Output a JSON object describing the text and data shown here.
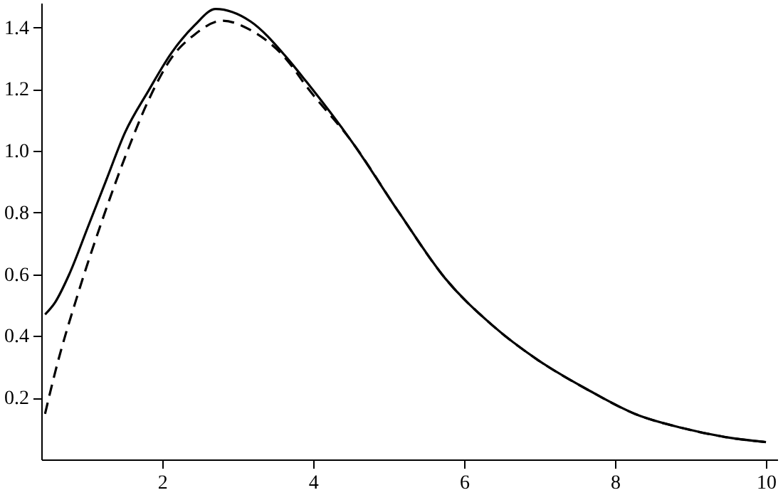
{
  "chart_data": {
    "type": "line",
    "xlim": [
      0.4,
      10.15
    ],
    "ylim": [
      0,
      1.48
    ],
    "xticks": [
      2,
      4,
      6,
      8,
      10
    ],
    "yticks": [
      0.2,
      0.4,
      0.6,
      0.8,
      {
        "value": 1,
        "label": "1.0"
      },
      1.2,
      1.4
    ],
    "grid": false,
    "series": [
      {
        "color": "#000000",
        "line_style": "solid",
        "x": [
          0.45,
          0.585,
          0.77,
          1.02,
          1.26,
          1.51,
          1.82,
          2.12,
          2.43,
          2.71,
          3.17,
          3.66,
          3.91,
          4.52,
          5.14,
          5.75,
          6.37,
          6.98,
          7.66,
          8.27,
          8.89,
          9.5,
          10
        ],
        "values": [
          0.47,
          0.51,
          0.6,
          0.755,
          0.905,
          1.06,
          1.195,
          1.316,
          1.407,
          1.46,
          1.42,
          1.3,
          1.225,
          1.028,
          0.8,
          0.587,
          0.436,
          0.322,
          0.223,
          0.147,
          0.102,
          0.071,
          0.056
        ]
      },
      {
        "color": "#000000",
        "line_style": "dashed",
        "x": [
          0.45,
          0.585,
          0.89,
          1.2,
          1.51,
          1.82,
          2.12,
          2.43,
          2.8,
          3.17,
          3.66,
          3.91,
          4.52,
          5.14,
          5.75,
          6.37,
          6.98,
          7.66,
          8.27,
          8.89,
          9.5,
          10
        ],
        "values": [
          0.148,
          0.284,
          0.54,
          0.77,
          0.98,
          1.164,
          1.3,
          1.377,
          1.422,
          1.392,
          1.293,
          1.21,
          1.028,
          0.8,
          0.587,
          0.436,
          0.322,
          0.223,
          0.147,
          0.102,
          0.071,
          0.056
        ]
      }
    ]
  }
}
